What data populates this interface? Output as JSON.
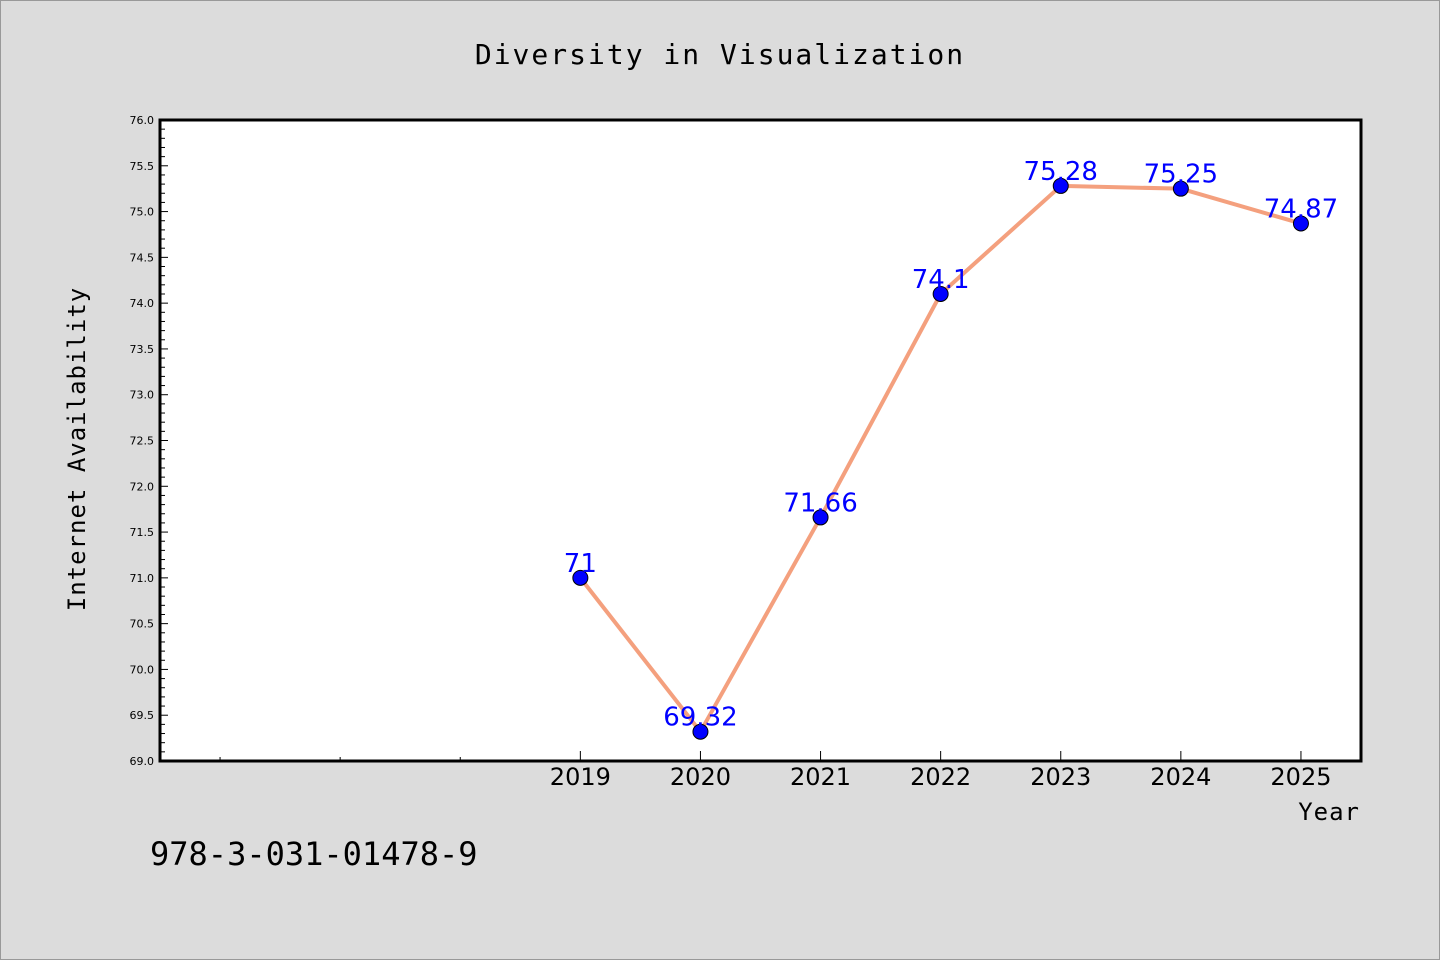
{
  "chart_data": {
    "type": "line",
    "title": "Diversity in Visualization",
    "xlabel": "Year",
    "ylabel": "Internet Availability",
    "x": [
      2019,
      2020,
      2021,
      2022,
      2023,
      2024,
      2025
    ],
    "values": [
      71,
      69.32,
      71.66,
      74.1,
      75.28,
      75.25,
      74.87
    ],
    "data_labels": [
      "71",
      "69.32",
      "71.66",
      "74.1",
      "75.28",
      "75.25",
      "74.87"
    ],
    "ylim": [
      69.0,
      76.0
    ],
    "yticks": [
      "69.0",
      "69.5",
      "70.0",
      "70.5",
      "71.0",
      "71.5",
      "72.0",
      "72.5",
      "73.0",
      "73.5",
      "74.0",
      "74.5",
      "75.0",
      "75.5",
      "76.0"
    ],
    "xlim": [
      2015.5,
      2025.5
    ],
    "line_color": "#f4a07e",
    "marker_color": "#0000ff",
    "label_color": "#0000ff",
    "grid": false,
    "legend": "none"
  },
  "footer": {
    "isbn": "978-3-031-01478-9"
  }
}
